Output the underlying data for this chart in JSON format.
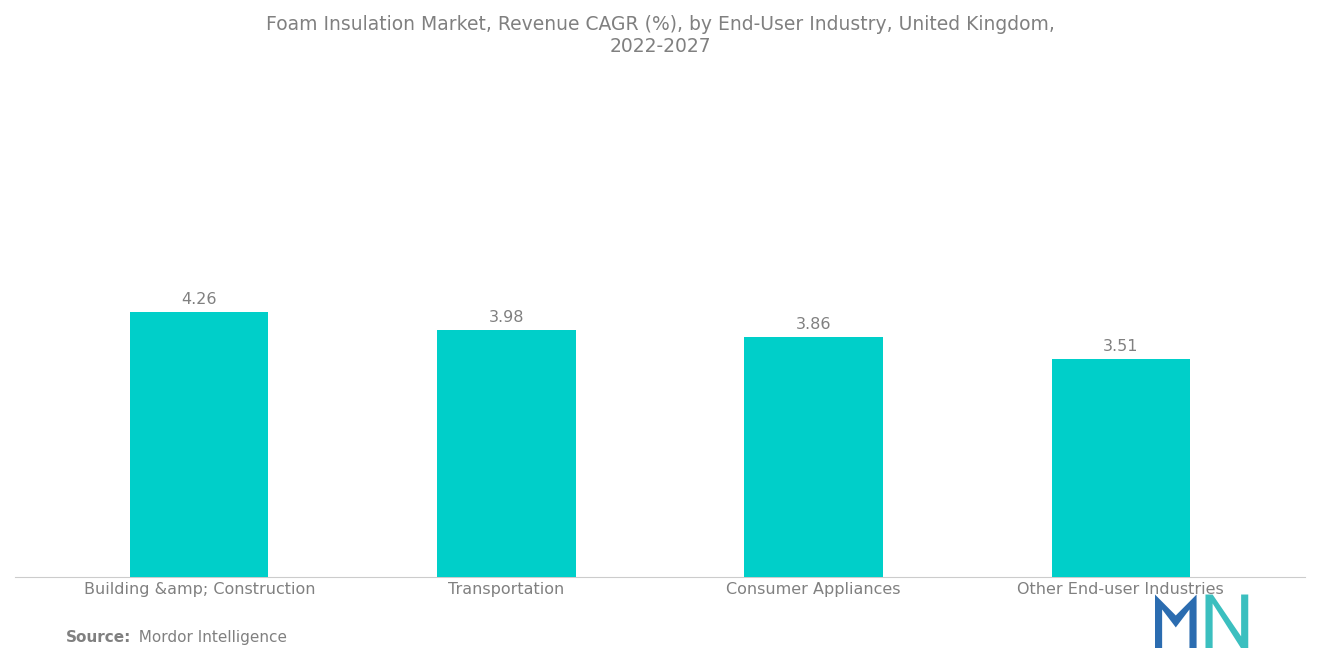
{
  "title": "Foam Insulation Market, Revenue CAGR (%), by End-User Industry, United Kingdom,\n2022-2027",
  "categories": [
    "Building &amp; Construction",
    "Transportation",
    "Consumer Appliances",
    "Other End-user Industries"
  ],
  "values": [
    4.26,
    3.98,
    3.86,
    3.51
  ],
  "bar_color": "#00CFC9",
  "bar_width": 0.45,
  "ylim": [
    0,
    8.0
  ],
  "value_labels": [
    "4.26",
    "3.98",
    "3.86",
    "3.51"
  ],
  "source_bold": "Source:",
  "source_rest": "  Mordor Intelligence",
  "title_fontsize": 13.5,
  "label_fontsize": 11.5,
  "value_fontsize": 11.5,
  "source_fontsize": 11,
  "background_color": "#ffffff",
  "text_color": "#808080",
  "logo_dark_blue": "#2B6CB0",
  "logo_teal": "#3BBFBF"
}
